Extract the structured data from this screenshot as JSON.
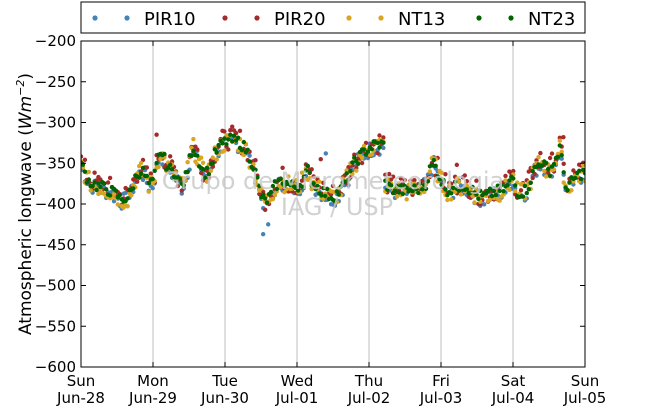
{
  "chart_data": {
    "type": "scatter",
    "ylabel_text": "Atmospheric longwave (",
    "ylabel_unit_base": "Wm",
    "ylabel_unit_exp": "−2",
    "ylabel_close": ")",
    "ylim": [
      -600,
      -200
    ],
    "yticks": [
      -200,
      -250,
      -300,
      -350,
      -400,
      -450,
      -500,
      -550,
      -600
    ],
    "ytick_labels": [
      "−200",
      "−250",
      "−300",
      "−350",
      "−400",
      "−450",
      "−500",
      "−550",
      "−600"
    ],
    "xlim": [
      0,
      7
    ],
    "xticks": [
      {
        "day": "Sun",
        "date": "Jun-28",
        "x": 0
      },
      {
        "day": "Mon",
        "date": "Jun-29",
        "x": 1
      },
      {
        "day": "Tue",
        "date": "Jun-30",
        "x": 2
      },
      {
        "day": "Wed",
        "date": "Jul-01",
        "x": 3
      },
      {
        "day": "Thu",
        "date": "Jul-02",
        "x": 4
      },
      {
        "day": "Fri",
        "date": "Jul-03",
        "x": 5
      },
      {
        "day": "Sat",
        "date": "Jul-04",
        "x": 6
      },
      {
        "day": "Sun",
        "date": "Jul-05",
        "x": 7
      }
    ],
    "grid": "vertical",
    "legend_position": "top",
    "watermark": [
      "Grupo de Micrometeorologia",
      "IAG / USP"
    ],
    "series": [
      {
        "name": "PIR10",
        "color": "#4682b4",
        "spread": 10,
        "offset": -2
      },
      {
        "name": "PIR20",
        "color": "#a52a2a",
        "spread": 14,
        "offset": 4
      },
      {
        "name": "NT13",
        "color": "#daa520",
        "spread": 12,
        "offset": 0
      },
      {
        "name": "NT23",
        "color": "#006400",
        "spread": 7,
        "offset": 1
      }
    ],
    "trend": [
      [
        0.0,
        -352
      ],
      [
        0.05,
        -362
      ],
      [
        0.1,
        -372
      ],
      [
        0.2,
        -378
      ],
      [
        0.35,
        -382
      ],
      [
        0.5,
        -390
      ],
      [
        0.55,
        -395
      ],
      [
        0.65,
        -393
      ],
      [
        0.7,
        -385
      ],
      [
        0.75,
        -370
      ],
      [
        0.8,
        -362
      ],
      [
        0.85,
        -360
      ],
      [
        0.9,
        -368
      ],
      [
        0.95,
        -378
      ],
      [
        1.0,
        -375
      ],
      [
        1.05,
        -355
      ],
      [
        1.1,
        -335
      ],
      [
        1.15,
        -345
      ],
      [
        1.2,
        -355
      ],
      [
        1.25,
        -360
      ],
      [
        1.3,
        -362
      ],
      [
        1.35,
        -370
      ],
      [
        1.4,
        -378
      ],
      [
        1.45,
        -370
      ],
      [
        1.5,
        -350
      ],
      [
        1.55,
        -330
      ],
      [
        1.6,
        -338
      ],
      [
        1.65,
        -350
      ],
      [
        1.7,
        -362
      ],
      [
        1.75,
        -362
      ],
      [
        1.8,
        -355
      ],
      [
        1.85,
        -342
      ],
      [
        1.9,
        -333
      ],
      [
        1.95,
        -328
      ],
      [
        2.0,
        -325
      ],
      [
        2.05,
        -323
      ],
      [
        2.1,
        -323
      ],
      [
        2.2,
        -325
      ],
      [
        2.3,
        -335
      ],
      [
        2.4,
        -355
      ],
      [
        2.45,
        -372
      ],
      [
        2.5,
        -390
      ],
      [
        2.55,
        -398
      ],
      [
        2.6,
        -395
      ],
      [
        2.65,
        -388
      ],
      [
        2.7,
        -378
      ],
      [
        2.8,
        -372
      ],
      [
        2.9,
        -378
      ],
      [
        3.0,
        -380
      ],
      [
        3.05,
        -376
      ],
      [
        3.1,
        -368
      ],
      [
        3.15,
        -360
      ],
      [
        3.2,
        -372
      ],
      [
        3.3,
        -382
      ],
      [
        3.4,
        -388
      ],
      [
        3.5,
        -392
      ],
      [
        3.6,
        -385
      ],
      [
        3.7,
        -368
      ],
      [
        3.8,
        -350
      ],
      [
        3.9,
        -340
      ],
      [
        4.0,
        -332
      ],
      [
        4.1,
        -328
      ],
      [
        4.2,
        -328
      ],
      [
        4.22,
        -375
      ],
      [
        4.3,
        -382
      ],
      [
        4.5,
        -385
      ],
      [
        4.7,
        -382
      ],
      [
        4.8,
        -375
      ],
      [
        4.85,
        -358
      ],
      [
        4.9,
        -350
      ],
      [
        4.95,
        -360
      ],
      [
        5.0,
        -372
      ],
      [
        5.1,
        -385
      ],
      [
        5.2,
        -380
      ],
      [
        5.3,
        -378
      ],
      [
        5.4,
        -382
      ],
      [
        5.5,
        -390
      ],
      [
        5.6,
        -392
      ],
      [
        5.7,
        -388
      ],
      [
        5.8,
        -385
      ],
      [
        5.9,
        -382
      ],
      [
        5.95,
        -375
      ],
      [
        6.0,
        -368
      ],
      [
        6.05,
        -385
      ],
      [
        6.1,
        -388
      ],
      [
        6.2,
        -382
      ],
      [
        6.3,
        -358
      ],
      [
        6.4,
        -348
      ],
      [
        6.5,
        -362
      ],
      [
        6.6,
        -345
      ],
      [
        6.65,
        -332
      ],
      [
        6.7,
        -360
      ],
      [
        6.75,
        -385
      ],
      [
        6.8,
        -376
      ],
      [
        6.9,
        -365
      ],
      [
        7.0,
        -362
      ]
    ],
    "outlier_points": [
      {
        "x": 2.53,
        "y": -437,
        "series": "PIR10"
      },
      {
        "x": 2.6,
        "y": -425,
        "series": "PIR10"
      },
      {
        "x": 3.4,
        "y": -338,
        "series": "PIR10"
      },
      {
        "x": 1.05,
        "y": -315,
        "series": "PIR20"
      },
      {
        "x": 3.33,
        "y": -345,
        "series": "PIR20"
      },
      {
        "x": 5.22,
        "y": -352,
        "series": "PIR20"
      },
      {
        "x": 6.7,
        "y": -318,
        "series": "PIR20"
      }
    ]
  }
}
